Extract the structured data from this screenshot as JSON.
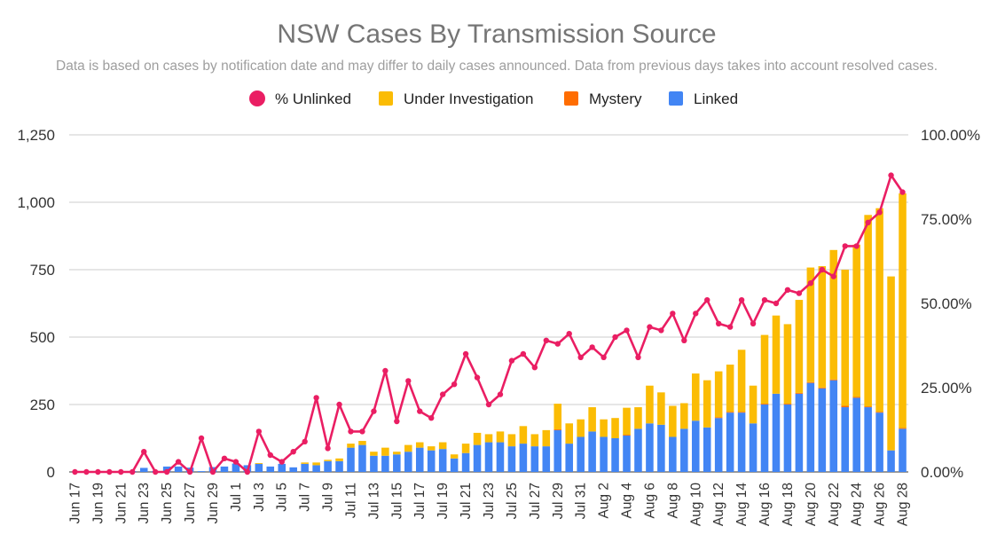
{
  "chart_data": {
    "type": "bar",
    "title": "NSW Cases By Transmission Source",
    "subtitle": "Data is based on cases by notification date and may differ to daily cases announced. Data from previous days takes into account resolved cases.",
    "stacked": true,
    "legend": [
      {
        "key": "pct",
        "label": "% Unlinked",
        "color": "#ea1e63",
        "shape": "circle"
      },
      {
        "key": "investigation",
        "label": "Under Investigation",
        "color": "#fbbc04",
        "shape": "square"
      },
      {
        "key": "mystery",
        "label": "Mystery",
        "color": "#ff6d01",
        "shape": "square"
      },
      {
        "key": "linked",
        "label": "Linked",
        "color": "#4285f4",
        "shape": "square"
      }
    ],
    "y_left": {
      "min": 0,
      "max": 1250,
      "ticks": [
        "0",
        "250",
        "500",
        "750",
        "1,000",
        "1,250"
      ]
    },
    "y_right": {
      "min": 0,
      "max": 100,
      "ticks": [
        "0.00%",
        "25.00%",
        "50.00%",
        "75.00%",
        "100.00%"
      ]
    },
    "x_tick_labels": [
      "Jun 17",
      "Jun 19",
      "Jun 21",
      "Jun 23",
      "Jun 25",
      "Jun 27",
      "Jun 29",
      "Jul 1",
      "Jul 3",
      "Jul 5",
      "Jul 7",
      "Jul 9",
      "Jul 11",
      "Jul 13",
      "Jul 15",
      "Jul 17",
      "Jul 19",
      "Jul 21",
      "Jul 23",
      "Jul 25",
      "Jul 27",
      "Jul 29",
      "Jul 31",
      "Aug 2",
      "Aug 4",
      "Aug 6",
      "Aug 8",
      "Aug 10",
      "Aug 12",
      "Aug 14",
      "Aug 16",
      "Aug 18",
      "Aug 20",
      "Aug 22",
      "Aug 24",
      "Aug 26",
      "Aug 28"
    ],
    "categories": [
      "Jun 17",
      "Jun 18",
      "Jun 19",
      "Jun 20",
      "Jun 21",
      "Jun 22",
      "Jun 23",
      "Jun 24",
      "Jun 25",
      "Jun 26",
      "Jun 27",
      "Jun 28",
      "Jun 29",
      "Jun 30",
      "Jul 1",
      "Jul 2",
      "Jul 3",
      "Jul 4",
      "Jul 5",
      "Jul 6",
      "Jul 7",
      "Jul 8",
      "Jul 9",
      "Jul 10",
      "Jul 11",
      "Jul 12",
      "Jul 13",
      "Jul 14",
      "Jul 15",
      "Jul 16",
      "Jul 17",
      "Jul 18",
      "Jul 19",
      "Jul 20",
      "Jul 21",
      "Jul 22",
      "Jul 23",
      "Jul 24",
      "Jul 25",
      "Jul 26",
      "Jul 27",
      "Jul 28",
      "Jul 29",
      "Jul 30",
      "Jul 31",
      "Aug 1",
      "Aug 2",
      "Aug 3",
      "Aug 4",
      "Aug 5",
      "Aug 6",
      "Aug 7",
      "Aug 8",
      "Aug 9",
      "Aug 10",
      "Aug 11",
      "Aug 12",
      "Aug 13",
      "Aug 14",
      "Aug 15",
      "Aug 16",
      "Aug 17",
      "Aug 18",
      "Aug 19",
      "Aug 20",
      "Aug 21",
      "Aug 22",
      "Aug 23",
      "Aug 24",
      "Aug 25",
      "Aug 26",
      "Aug 27",
      "Aug 28"
    ],
    "series": [
      {
        "name": "Linked",
        "axis": "left",
        "type": "bar",
        "values": [
          0,
          0,
          0,
          0,
          0,
          3,
          15,
          3,
          20,
          20,
          16,
          3,
          18,
          20,
          31,
          25,
          30,
          20,
          30,
          17,
          30,
          25,
          40,
          40,
          90,
          100,
          60,
          60,
          65,
          75,
          90,
          80,
          85,
          50,
          70,
          100,
          110,
          110,
          95,
          105,
          95,
          95,
          155,
          105,
          130,
          150,
          130,
          125,
          135,
          160,
          180,
          175,
          130,
          160,
          190,
          165,
          200,
          220,
          220,
          180,
          250,
          290,
          250,
          290,
          330,
          310,
          340,
          240,
          275,
          240,
          220,
          80,
          160
        ]
      },
      {
        "name": "Mystery",
        "axis": "left",
        "type": "bar",
        "values": [
          0,
          0,
          0,
          0,
          0,
          0,
          0,
          0,
          0,
          0,
          0,
          0,
          0,
          0,
          0,
          0,
          0,
          0,
          0,
          0,
          0,
          0,
          0,
          0,
          0,
          0,
          0,
          0,
          0,
          0,
          0,
          0,
          0,
          0,
          0,
          0,
          0,
          0,
          0,
          0,
          0,
          0,
          3,
          0,
          0,
          0,
          0,
          0,
          3,
          0,
          0,
          0,
          0,
          0,
          0,
          0,
          3,
          3,
          3,
          0,
          3,
          0,
          3,
          3,
          3,
          3,
          3,
          5,
          3,
          3,
          3,
          0,
          3
        ]
      },
      {
        "name": "Under Investigation",
        "axis": "left",
        "type": "bar",
        "values": [
          0,
          0,
          0,
          0,
          0,
          0,
          0,
          0,
          0,
          0,
          0,
          0,
          0,
          0,
          0,
          0,
          3,
          0,
          0,
          0,
          5,
          10,
          5,
          10,
          15,
          15,
          15,
          30,
          10,
          25,
          20,
          15,
          25,
          15,
          35,
          45,
          30,
          40,
          45,
          65,
          45,
          60,
          95,
          75,
          65,
          90,
          65,
          75,
          100,
          80,
          140,
          120,
          115,
          95,
          175,
          175,
          170,
          175,
          230,
          140,
          255,
          290,
          295,
          345,
          425,
          450,
          480,
          505,
          565,
          710,
          755,
          645,
          870
        ]
      },
      {
        "name": "% Unlinked",
        "axis": "right",
        "type": "line",
        "values": [
          0,
          0,
          0,
          0,
          0,
          0,
          6,
          0,
          0,
          3,
          0,
          10,
          0,
          4,
          3,
          0,
          12,
          5,
          3,
          6,
          9,
          22,
          7,
          20,
          12,
          12,
          18,
          30,
          15,
          27,
          18,
          16,
          23,
          26,
          35,
          28,
          20,
          23,
          33,
          35,
          31,
          39,
          38,
          41,
          34,
          37,
          34,
          40,
          42,
          34,
          43,
          42,
          47,
          39,
          47,
          51,
          44,
          43,
          51,
          44,
          51,
          50,
          54,
          53,
          56,
          60,
          58,
          67,
          67,
          74,
          77,
          88,
          83
        ]
      }
    ]
  }
}
